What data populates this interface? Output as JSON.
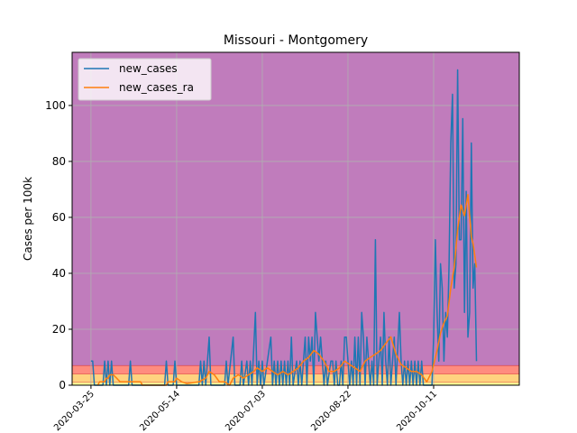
{
  "chart_data": {
    "type": "line",
    "title": "Missouri - Montgomery",
    "xlabel": "",
    "ylabel": "Cases per 100k",
    "x_start": "2020-03-14",
    "xlim": [
      "2020-03-14",
      "2020-11-30"
    ],
    "ylim": [
      0,
      119
    ],
    "x_ticks": [
      "2020-03-25",
      "2020-05-14",
      "2020-07-03",
      "2020-08-22",
      "2020-10-11"
    ],
    "y_ticks": [
      0,
      20,
      40,
      60,
      80,
      100
    ],
    "grid": true,
    "legend_position": "top-left",
    "risk_bands": [
      {
        "from": 0,
        "to": 1,
        "color": "#ffff99"
      },
      {
        "from": 1,
        "to": 4,
        "color": "#ffd27f"
      },
      {
        "from": 4,
        "to": 7,
        "color": "#ff8c7f"
      },
      {
        "from": 7,
        "to": 119,
        "color": "#c07cbc"
      }
    ],
    "band_edge_color": "#d62728",
    "series": [
      {
        "name": "new_cases",
        "color": "#1f77b4",
        "points": [
          [
            "2020-03-25",
            8.6
          ],
          [
            "2020-03-26",
            8.6
          ],
          [
            "2020-03-27",
            0
          ],
          [
            "2020-04-01",
            0
          ],
          [
            "2020-04-02",
            8.6
          ],
          [
            "2020-04-03",
            0
          ],
          [
            "2020-04-04",
            8.6
          ],
          [
            "2020-04-05",
            0
          ],
          [
            "2020-04-06",
            8.6
          ],
          [
            "2020-04-07",
            0
          ],
          [
            "2020-04-16",
            0
          ],
          [
            "2020-04-17",
            8.6
          ],
          [
            "2020-04-18",
            0
          ],
          [
            "2020-05-07",
            0
          ],
          [
            "2020-05-08",
            8.6
          ],
          [
            "2020-05-09",
            0
          ],
          [
            "2020-05-12",
            0
          ],
          [
            "2020-05-13",
            8.6
          ],
          [
            "2020-05-14",
            0
          ],
          [
            "2020-05-27",
            0
          ],
          [
            "2020-05-28",
            8.6
          ],
          [
            "2020-05-29",
            0
          ],
          [
            "2020-05-30",
            8.6
          ],
          [
            "2020-05-31",
            0
          ],
          [
            "2020-06-01",
            8.6
          ],
          [
            "2020-06-02",
            17.2
          ],
          [
            "2020-06-03",
            0
          ],
          [
            "2020-06-11",
            0
          ],
          [
            "2020-06-12",
            8.6
          ],
          [
            "2020-06-13",
            0
          ],
          [
            "2020-06-16",
            17.2
          ],
          [
            "2020-06-17",
            0
          ],
          [
            "2020-06-20",
            0
          ],
          [
            "2020-06-21",
            8.6
          ],
          [
            "2020-06-22",
            0
          ],
          [
            "2020-06-24",
            8.6
          ],
          [
            "2020-06-25",
            0
          ],
          [
            "2020-06-26",
            8.6
          ],
          [
            "2020-06-27",
            0
          ],
          [
            "2020-06-29",
            26
          ],
          [
            "2020-06-30",
            0
          ],
          [
            "2020-07-01",
            8.6
          ],
          [
            "2020-07-02",
            0
          ],
          [
            "2020-07-03",
            8.6
          ],
          [
            "2020-07-04",
            0
          ],
          [
            "2020-07-08",
            17.2
          ],
          [
            "2020-07-09",
            0
          ],
          [
            "2020-07-10",
            8.6
          ],
          [
            "2020-07-11",
            0
          ],
          [
            "2020-07-12",
            8.6
          ],
          [
            "2020-07-13",
            0
          ],
          [
            "2020-07-14",
            8.6
          ],
          [
            "2020-07-15",
            0
          ],
          [
            "2020-07-16",
            8.6
          ],
          [
            "2020-07-17",
            0
          ],
          [
            "2020-07-18",
            8.6
          ],
          [
            "2020-07-19",
            0
          ],
          [
            "2020-07-20",
            17.2
          ],
          [
            "2020-07-21",
            0
          ],
          [
            "2020-07-23",
            8.6
          ],
          [
            "2020-07-24",
            0
          ],
          [
            "2020-07-25",
            8.6
          ],
          [
            "2020-07-26",
            0
          ],
          [
            "2020-07-28",
            17.2
          ],
          [
            "2020-07-29",
            0
          ],
          [
            "2020-07-30",
            17.2
          ],
          [
            "2020-07-31",
            8.6
          ],
          [
            "2020-08-01",
            17.2
          ],
          [
            "2020-08-02",
            0
          ],
          [
            "2020-08-03",
            26
          ],
          [
            "2020-08-04",
            17.2
          ],
          [
            "2020-08-05",
            8.6
          ],
          [
            "2020-08-06",
            17.2
          ],
          [
            "2020-08-07",
            8.6
          ],
          [
            "2020-08-08",
            0
          ],
          [
            "2020-08-09",
            8.6
          ],
          [
            "2020-08-10",
            0
          ],
          [
            "2020-08-12",
            8.6
          ],
          [
            "2020-08-13",
            8.6
          ],
          [
            "2020-08-14",
            0
          ],
          [
            "2020-08-15",
            8.6
          ],
          [
            "2020-08-16",
            0
          ],
          [
            "2020-08-17",
            0
          ],
          [
            "2020-08-18",
            8.6
          ],
          [
            "2020-08-19",
            0
          ],
          [
            "2020-08-20",
            17.2
          ],
          [
            "2020-08-21",
            17.2
          ],
          [
            "2020-08-22",
            8.6
          ],
          [
            "2020-08-23",
            0
          ],
          [
            "2020-08-24",
            8.6
          ],
          [
            "2020-08-25",
            0
          ],
          [
            "2020-08-26",
            17.2
          ],
          [
            "2020-08-27",
            0
          ],
          [
            "2020-08-28",
            17.2
          ],
          [
            "2020-08-29",
            0
          ],
          [
            "2020-08-30",
            26
          ],
          [
            "2020-08-31",
            17.2
          ],
          [
            "2020-09-01",
            0
          ],
          [
            "2020-09-02",
            17.2
          ],
          [
            "2020-09-03",
            8.6
          ],
          [
            "2020-09-04",
            0
          ],
          [
            "2020-09-05",
            8.6
          ],
          [
            "2020-09-06",
            0
          ],
          [
            "2020-09-07",
            52
          ],
          [
            "2020-09-08",
            0
          ],
          [
            "2020-09-09",
            8.6
          ],
          [
            "2020-09-10",
            17.2
          ],
          [
            "2020-09-11",
            0
          ],
          [
            "2020-09-12",
            26
          ],
          [
            "2020-09-13",
            8.6
          ],
          [
            "2020-09-14",
            0
          ],
          [
            "2020-09-15",
            17.2
          ],
          [
            "2020-09-16",
            0
          ],
          [
            "2020-09-17",
            8.6
          ],
          [
            "2020-09-18",
            17.2
          ],
          [
            "2020-09-19",
            0
          ],
          [
            "2020-09-21",
            26
          ],
          [
            "2020-09-22",
            8.6
          ],
          [
            "2020-09-23",
            0
          ],
          [
            "2020-09-24",
            8.6
          ],
          [
            "2020-09-25",
            0
          ],
          [
            "2020-09-26",
            8.6
          ],
          [
            "2020-09-27",
            0
          ],
          [
            "2020-09-28",
            8.6
          ],
          [
            "2020-09-29",
            0
          ],
          [
            "2020-09-30",
            8.6
          ],
          [
            "2020-10-01",
            0
          ],
          [
            "2020-10-02",
            8.6
          ],
          [
            "2020-10-03",
            0
          ],
          [
            "2020-10-04",
            8.6
          ],
          [
            "2020-10-05",
            0
          ],
          [
            "2020-10-10",
            0
          ],
          [
            "2020-10-11",
            17.2
          ],
          [
            "2020-10-12",
            52
          ],
          [
            "2020-10-13",
            26
          ],
          [
            "2020-10-14",
            8.6
          ],
          [
            "2020-10-15",
            43.4
          ],
          [
            "2020-10-16",
            34.7
          ],
          [
            "2020-10-17",
            8.6
          ],
          [
            "2020-10-18",
            26
          ],
          [
            "2020-10-19",
            17.2
          ],
          [
            "2020-10-20",
            43.4
          ],
          [
            "2020-10-21",
            86.6
          ],
          [
            "2020-10-22",
            104
          ],
          [
            "2020-10-23",
            34.7
          ],
          [
            "2020-10-24",
            43.4
          ],
          [
            "2020-10-25",
            112.7
          ],
          [
            "2020-10-26",
            52
          ],
          [
            "2020-10-27",
            52
          ],
          [
            "2020-10-28",
            95.3
          ],
          [
            "2020-10-29",
            26
          ],
          [
            "2020-10-30",
            69.3
          ],
          [
            "2020-10-31",
            17.2
          ],
          [
            "2020-11-01",
            26
          ],
          [
            "2020-11-02",
            86.6
          ],
          [
            "2020-11-03",
            34.7
          ],
          [
            "2020-11-04",
            43.4
          ],
          [
            "2020-11-05",
            8.6
          ]
        ]
      },
      {
        "name": "new_cases_ra",
        "color": "#ff7f0e",
        "points": [
          [
            "2020-03-29",
            0
          ],
          [
            "2020-03-30",
            1.2
          ],
          [
            "2020-04-02",
            1.2
          ],
          [
            "2020-04-03",
            2.5
          ],
          [
            "2020-04-04",
            2.5
          ],
          [
            "2020-04-05",
            3.7
          ],
          [
            "2020-04-07",
            3.7
          ],
          [
            "2020-04-09",
            2.5
          ],
          [
            "2020-04-11",
            1.2
          ],
          [
            "2020-04-14",
            1.2
          ],
          [
            "2020-04-17",
            1.2
          ],
          [
            "2020-04-23",
            1.2
          ],
          [
            "2020-04-24",
            0
          ],
          [
            "2020-05-08",
            0
          ],
          [
            "2020-05-09",
            1.2
          ],
          [
            "2020-05-13",
            1.2
          ],
          [
            "2020-05-14",
            2.5
          ],
          [
            "2020-05-17",
            1.2
          ],
          [
            "2020-05-20",
            0.6
          ],
          [
            "2020-05-27",
            1.2
          ],
          [
            "2020-05-31",
            2.5
          ],
          [
            "2020-06-02",
            4.9
          ],
          [
            "2020-06-05",
            3.7
          ],
          [
            "2020-06-08",
            1.2
          ],
          [
            "2020-06-11",
            1.2
          ],
          [
            "2020-06-14",
            0
          ],
          [
            "2020-06-16",
            2.5
          ],
          [
            "2020-06-19",
            3.7
          ],
          [
            "2020-06-22",
            2.5
          ],
          [
            "2020-06-25",
            3.7
          ],
          [
            "2020-06-28",
            4.9
          ],
          [
            "2020-06-30",
            6.2
          ],
          [
            "2020-07-03",
            4.9
          ],
          [
            "2020-07-06",
            6.2
          ],
          [
            "2020-07-09",
            4.9
          ],
          [
            "2020-07-12",
            3.7
          ],
          [
            "2020-07-15",
            4.9
          ],
          [
            "2020-07-18",
            3.7
          ],
          [
            "2020-07-21",
            4.9
          ],
          [
            "2020-07-24",
            6.2
          ],
          [
            "2020-07-27",
            8.6
          ],
          [
            "2020-07-30",
            9.9
          ],
          [
            "2020-08-02",
            12.4
          ],
          [
            "2020-08-05",
            11.1
          ],
          [
            "2020-08-08",
            8.6
          ],
          [
            "2020-08-11",
            4.9
          ],
          [
            "2020-08-14",
            4.9
          ],
          [
            "2020-08-17",
            6.2
          ],
          [
            "2020-08-20",
            8.6
          ],
          [
            "2020-08-23",
            7.4
          ],
          [
            "2020-08-26",
            6.2
          ],
          [
            "2020-08-29",
            4.9
          ],
          [
            "2020-09-01",
            8.6
          ],
          [
            "2020-09-04",
            9.9
          ],
          [
            "2020-09-07",
            11.1
          ],
          [
            "2020-09-10",
            12.4
          ],
          [
            "2020-09-13",
            14.9
          ],
          [
            "2020-09-16",
            17.3
          ],
          [
            "2020-09-19",
            11.1
          ],
          [
            "2020-09-22",
            7.4
          ],
          [
            "2020-09-25",
            6.2
          ],
          [
            "2020-09-28",
            4.9
          ],
          [
            "2020-10-01",
            4.9
          ],
          [
            "2020-10-04",
            3.7
          ],
          [
            "2020-10-07",
            1.2
          ],
          [
            "2020-10-10",
            4.9
          ],
          [
            "2020-10-13",
            12.4
          ],
          [
            "2020-10-15",
            18.6
          ],
          [
            "2020-10-17",
            22.3
          ],
          [
            "2020-10-19",
            24.8
          ],
          [
            "2020-10-21",
            34.7
          ],
          [
            "2020-10-23",
            42.1
          ],
          [
            "2020-10-25",
            55.7
          ],
          [
            "2020-10-27",
            64.4
          ],
          [
            "2020-10-29",
            60.6
          ],
          [
            "2020-10-31",
            68.1
          ],
          [
            "2020-11-02",
            53
          ],
          [
            "2020-11-03",
            50.7
          ],
          [
            "2020-11-05",
            42.1
          ]
        ]
      }
    ]
  }
}
